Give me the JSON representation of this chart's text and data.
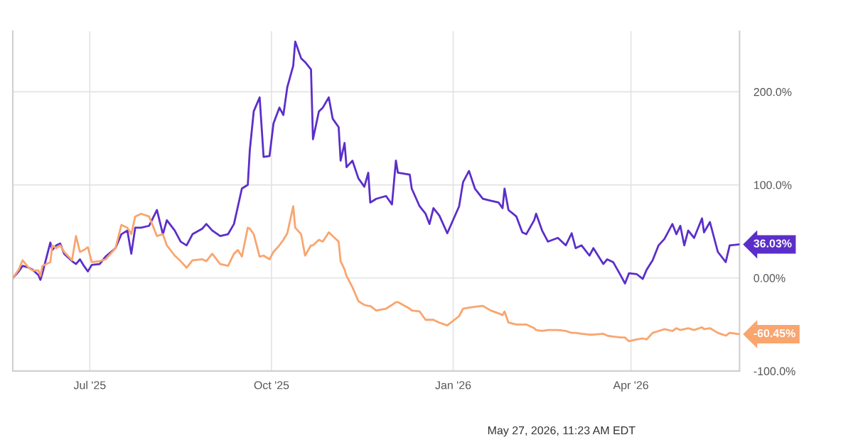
{
  "chart_data": {
    "type": "line",
    "x": [
      "2025-05-23",
      "2025-05-26",
      "2025-05-28",
      "2025-05-31",
      "2025-06-02",
      "2025-06-05",
      "2025-06-06",
      "2025-06-07",
      "2025-06-11",
      "2025-06-12",
      "2025-06-14",
      "2025-06-16",
      "2025-06-18",
      "2025-06-22",
      "2025-06-24",
      "2025-06-26",
      "2025-06-28",
      "2025-06-30",
      "2025-07-02",
      "2025-07-06",
      "2025-07-09",
      "2025-07-14",
      "2025-07-17",
      "2025-07-20",
      "2025-07-22",
      "2025-07-24",
      "2025-07-27",
      "2025-07-31",
      "2025-08-04",
      "2025-08-07",
      "2025-08-09",
      "2025-08-13",
      "2025-08-16",
      "2025-08-19",
      "2025-08-22",
      "2025-08-27",
      "2025-08-29",
      "2025-09-01",
      "2025-09-05",
      "2025-09-09",
      "2025-09-12",
      "2025-09-14",
      "2025-09-16",
      "2025-09-19",
      "2025-09-20",
      "2025-09-22",
      "2025-09-25",
      "2025-09-27",
      "2025-09-30",
      "2025-10-02",
      "2025-10-05",
      "2025-10-07",
      "2025-10-09",
      "2025-10-12",
      "2025-10-13",
      "2025-10-16",
      "2025-10-18",
      "2025-10-21",
      "2025-10-22",
      "2025-10-25",
      "2025-10-27",
      "2025-10-30",
      "2025-11-01",
      "2025-11-04",
      "2025-11-05",
      "2025-11-07",
      "2025-11-08",
      "2025-11-11",
      "2025-11-14",
      "2025-11-17",
      "2025-11-19",
      "2025-11-20",
      "2025-11-23",
      "2025-11-28",
      "2025-12-01",
      "2025-12-03",
      "2025-12-04",
      "2025-12-10",
      "2025-12-11",
      "2025-12-15",
      "2025-12-18",
      "2025-12-20",
      "2025-12-22",
      "2025-12-25",
      "2025-12-29",
      "2026-01-04",
      "2026-01-06",
      "2026-01-09",
      "2026-01-12",
      "2026-01-16",
      "2026-01-20",
      "2026-01-24",
      "2026-01-26",
      "2026-01-27",
      "2026-01-29",
      "2026-02-02",
      "2026-02-05",
      "2026-02-07",
      "2026-02-11",
      "2026-02-12",
      "2026-02-15",
      "2026-02-18",
      "2026-02-23",
      "2026-02-27",
      "2026-03-02",
      "2026-03-04",
      "2026-03-07",
      "2026-03-11",
      "2026-03-13",
      "2026-03-18",
      "2026-03-20",
      "2026-03-23",
      "2026-03-27",
      "2026-03-29",
      "2026-03-31",
      "2026-04-04",
      "2026-04-07",
      "2026-04-09",
      "2026-04-12",
      "2026-04-15",
      "2026-04-18",
      "2026-04-22",
      "2026-04-24",
      "2026-04-26",
      "2026-04-28",
      "2026-04-30",
      "2026-05-03",
      "2026-05-07",
      "2026-05-08",
      "2026-05-11",
      "2026-05-15",
      "2026-05-19",
      "2026-05-21",
      "2026-05-26"
    ],
    "series": [
      {
        "color": "#5b2ec9",
        "values": [
          0,
          7,
          13,
          11,
          9,
          3,
          -2,
          5,
          38,
          30,
          35,
          37,
          26,
          18,
          15,
          20,
          13,
          7,
          14,
          15,
          23,
          32,
          47,
          51,
          26,
          54,
          54,
          56,
          73,
          47,
          62,
          51,
          39,
          35,
          47,
          53,
          58,
          51,
          45,
          47,
          58,
          77,
          96,
          100,
          137,
          179,
          194,
          130,
          131,
          166,
          183,
          175,
          205,
          228,
          254,
          236,
          232,
          224,
          149,
          179,
          183,
          194,
          171,
          162,
          126,
          145,
          119,
          126,
          107,
          98,
          113,
          81,
          85,
          88,
          79,
          126,
          113,
          111,
          96,
          77,
          69,
          58,
          75,
          67,
          48,
          77,
          103,
          115,
          96,
          85,
          83,
          81,
          75,
          96,
          73,
          66,
          49,
          47,
          62,
          69,
          51,
          39,
          43,
          35,
          48,
          32,
          35,
          24,
          32,
          15,
          20,
          17,
          2,
          -6,
          5,
          4,
          -1,
          9,
          19,
          35,
          42,
          58,
          47,
          56,
          35,
          51,
          43,
          64,
          49,
          60,
          28,
          17,
          35,
          36.03
        ]
      },
      {
        "color": "#f9a56e",
        "values": [
          0,
          9,
          19,
          11,
          8,
          8,
          2,
          13,
          17,
          35,
          32,
          35,
          28,
          19,
          45,
          28,
          30,
          33,
          17,
          18,
          20,
          32,
          57,
          54,
          47,
          66,
          69,
          66,
          45,
          47,
          35,
          24,
          18,
          11,
          19,
          20,
          18,
          26,
          15,
          13,
          26,
          30,
          23,
          54,
          53,
          47,
          23,
          24,
          20,
          28,
          35,
          41,
          48,
          77,
          54,
          47,
          24,
          35,
          35,
          41,
          39,
          49,
          45,
          39,
          18,
          9,
          2,
          -10,
          -25,
          -29,
          -30,
          -30,
          -35,
          -33,
          -29,
          -26,
          -26,
          -33,
          -35,
          -36,
          -45,
          -45,
          -45,
          -48,
          -51,
          -41,
          -33,
          -32,
          -31,
          -30,
          -35,
          -38,
          -40,
          -36,
          -48,
          -50,
          -50,
          -50,
          -54,
          -56,
          -57,
          -56,
          -56,
          -57,
          -59,
          -59,
          -60,
          -61,
          -61,
          -60,
          -62,
          -63,
          -64,
          -64,
          -68,
          -66,
          -65,
          -66,
          -59,
          -57,
          -55,
          -57,
          -54,
          -56,
          -55,
          -54,
          -56,
          -53,
          -55,
          -54,
          -59,
          -62,
          -59,
          -60.45
        ]
      }
    ],
    "xlim": [
      "2025-05-23",
      "2026-05-26"
    ],
    "xticks": [
      {
        "value": "2025-07-01",
        "label": "Jul '25"
      },
      {
        "value": "2025-10-01",
        "label": "Oct '25"
      },
      {
        "value": "2026-01-01",
        "label": "Jan '26"
      },
      {
        "value": "2026-04-01",
        "label": "Apr '26"
      }
    ],
    "ylim": [
      -100,
      265
    ],
    "yticks": [
      {
        "value": -100,
        "label": "-100.0%"
      },
      {
        "value": 0,
        "label": "0.00%"
      },
      {
        "value": 100,
        "label": "100.0%"
      },
      {
        "value": 200,
        "label": "200.0%"
      }
    ],
    "grid": true,
    "annotations": [
      {
        "text": "36.03%",
        "x": "2026-05-26",
        "y": 36.03
      },
      {
        "text": "-60.45%",
        "x": "2026-05-26",
        "y": -60.45
      },
      "May 27, 2026, 11:23 AM EDT"
    ]
  }
}
